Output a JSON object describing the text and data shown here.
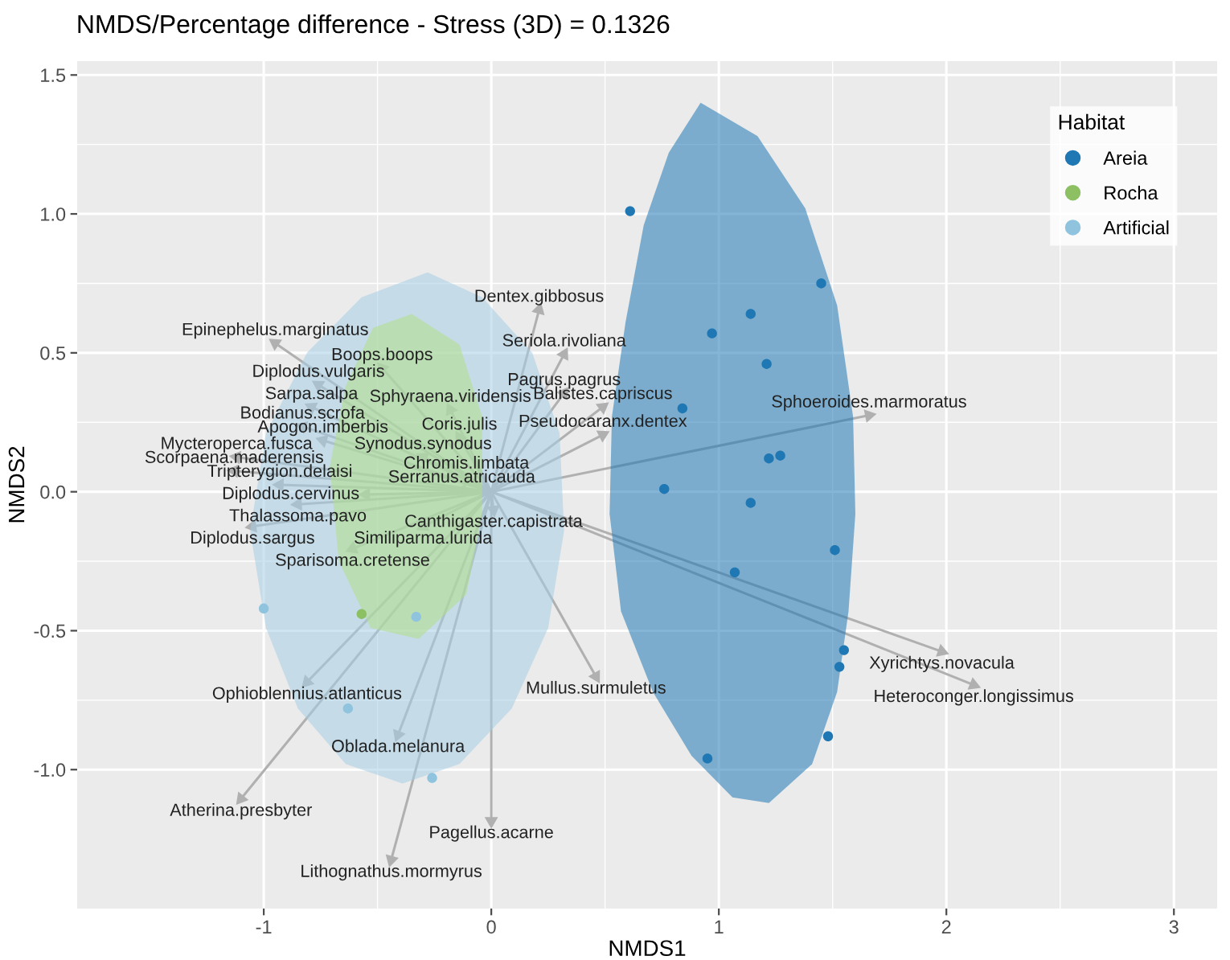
{
  "chart_data": {
    "type": "scatter",
    "title": "NMDS/Percentage difference - Stress (3D) = 0.1326",
    "xlabel": "NMDS1",
    "ylabel": "NMDS2",
    "legend_title": "Habitat",
    "legend": "top right",
    "grid": true,
    "xlim": [
      -1.82,
      3.19
    ],
    "ylim": [
      -1.5,
      1.55
    ],
    "xticks": [
      {
        "value": -1,
        "label": "-1"
      },
      0,
      1,
      2,
      3
    ],
    "yticks": [
      {
        "value": -1.0,
        "label": "-1.0"
      },
      {
        "value": -0.5,
        "label": "-0.5"
      },
      {
        "value": 0.0,
        "label": "0.0"
      },
      {
        "value": 0.5,
        "label": "0.5"
      },
      {
        "value": 1.0,
        "label": "1.0"
      },
      {
        "value": 1.5,
        "label": "1.5"
      }
    ],
    "series": [
      {
        "type": "area",
        "color": "#1f78b4",
        "x": [
          0.92,
          1.17,
          1.38,
          1.52,
          1.59,
          1.6,
          1.57,
          1.52,
          1.41,
          1.22,
          1.06,
          0.88,
          0.71,
          0.57,
          0.52,
          0.53,
          0.59,
          0.67,
          0.78
        ],
        "values": [
          1.4,
          1.28,
          1.02,
          0.67,
          0.27,
          -0.08,
          -0.43,
          -0.72,
          -0.98,
          -1.12,
          -1.1,
          -0.95,
          -0.72,
          -0.43,
          -0.08,
          0.27,
          0.61,
          0.96,
          1.22
        ]
      },
      {
        "type": "area",
        "color": "#a6cee3",
        "x": [
          -0.28,
          -0.04,
          0.18,
          0.3,
          0.32,
          0.25,
          0.09,
          -0.14,
          -0.39,
          -0.64,
          -0.85,
          -0.99,
          -1.06,
          -0.99,
          -0.81,
          -0.57
        ],
        "values": [
          0.79,
          0.7,
          0.5,
          0.21,
          -0.14,
          -0.49,
          -0.78,
          -0.98,
          -1.05,
          -0.98,
          -0.78,
          -0.49,
          -0.14,
          0.21,
          0.5,
          0.7
        ]
      },
      {
        "type": "area",
        "color": "#b2df8a",
        "x": [
          -0.35,
          -0.14,
          -0.04,
          -0.04,
          -0.11,
          -0.32,
          -0.53,
          -0.67,
          -0.71,
          -0.64,
          -0.52
        ],
        "values": [
          0.64,
          0.53,
          0.27,
          -0.08,
          -0.37,
          -0.53,
          -0.49,
          -0.25,
          0.09,
          0.38,
          0.59
        ]
      },
      {
        "name": "Areia",
        "color": "#1f78b4",
        "marker": "circle",
        "x": [
          0.61,
          0.97,
          1.14,
          1.21,
          1.45,
          0.84,
          1.22,
          1.27,
          0.76,
          1.14,
          1.51,
          1.07,
          1.55,
          1.53,
          1.48,
          0.95
        ],
        "values": [
          1.01,
          0.57,
          0.64,
          0.46,
          0.75,
          0.3,
          0.12,
          0.13,
          0.01,
          -0.04,
          -0.21,
          -0.29,
          -0.57,
          -0.63,
          -0.88,
          -0.96
        ]
      },
      {
        "name": "Rocha",
        "color": "#8cc063",
        "marker": "circle",
        "x": [
          -0.57
        ],
        "values": [
          -0.44
        ]
      },
      {
        "name": "Artificial",
        "color": "#8fc3de",
        "marker": "circle",
        "x": [
          -1.0,
          -0.33,
          -0.63,
          -0.26
        ],
        "values": [
          -0.42,
          -0.45,
          -0.78,
          -1.03
        ]
      },
      {
        "color": "#b0b0b0",
        "marker": "triangle",
        "x": [
          0.21,
          -0.95,
          0.32,
          -0.48,
          -0.76,
          0.32,
          -0.79,
          -0.18,
          0.49,
          1.66,
          -0.83,
          -0.74,
          -0.14,
          0.49,
          -1.12,
          -0.3,
          -1.13,
          -0.11,
          -0.93,
          -0.13,
          -0.55,
          0.01,
          -0.85,
          -1.05,
          -0.3,
          -0.61,
          0.46,
          1.98,
          2.12,
          -0.81,
          -0.41,
          -1.1,
          0.0,
          -0.44
        ],
        "values": [
          0.655,
          0.535,
          0.495,
          0.445,
          0.385,
          0.355,
          0.305,
          0.295,
          0.305,
          0.275,
          0.235,
          0.185,
          0.195,
          0.205,
          0.125,
          0.125,
          0.075,
          0.055,
          0.025,
          0.005,
          -0.01,
          -0.065,
          -0.045,
          -0.125,
          -0.125,
          -0.205,
          -0.665,
          -0.575,
          -0.695,
          -0.685,
          -0.875,
          -1.105,
          -1.185,
          -1.325
        ],
        "value_labels": [
          "Dentex.gibbosus",
          "Epinephelus.marginatus",
          "Seriola.rivoliana",
          "Boops.boops",
          "Diplodus.vulgaris",
          "Pagrus.pagrus",
          "Sarpa.salpa",
          "Sphyraena.viridensis",
          "Balistes.capriscus",
          "Sphoeroides.marmoratus",
          "Bodianus.scrofa",
          "Apogon.imberbis",
          "Coris.julis",
          "Pseudocaranx.dentex",
          "Mycteroperca.fusca",
          "Synodus.synodus",
          "Scorpaena.maderensis",
          "Chromis.limbata",
          "Tripterygion.delaisi",
          "Serranus.atricauda",
          "Diplodus.cervinus",
          "Canthigaster.capistrata",
          "Thalassoma.pavo",
          "Diplodus.sargus",
          "Similiparma.lurida",
          "Sparisoma.cretense",
          "Mullus.surmuletus",
          "Xyrichtys.novacula",
          "Heteroconger.longissimus",
          "Ophioblennius.atlanticus",
          "Oblada.melanura",
          "Atherina.presbyter",
          "Pagellus.acarne",
          "Lithognathus.mormyrus"
        ]
      }
    ]
  }
}
